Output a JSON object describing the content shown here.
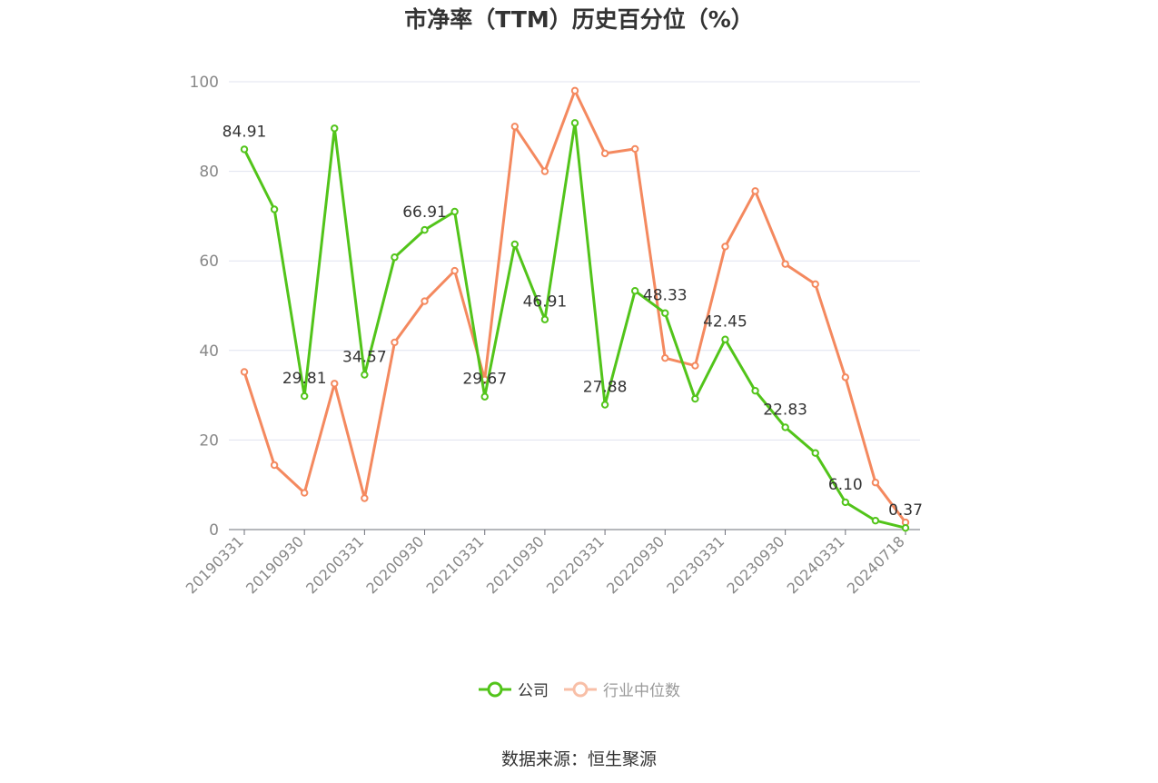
{
  "chart_data": {
    "type": "line",
    "title": "市净率（TTM）历史百分位（%）",
    "source": "数据来源：恒生聚源",
    "ylim": [
      0,
      100
    ],
    "yticks": [
      0,
      20,
      40,
      60,
      80,
      100
    ],
    "x_tick_labels": [
      "20190331",
      "20190930",
      "20200331",
      "20200930",
      "20210331",
      "20210930",
      "20220331",
      "20220930",
      "20230331",
      "20230930",
      "20240331",
      "20240718"
    ],
    "x": [
      "20190331",
      "20190630",
      "20190930",
      "20191231",
      "20200331",
      "20200630",
      "20200930",
      "20201231",
      "20210331",
      "20210630",
      "20210930",
      "20211231",
      "20220331",
      "20220630",
      "20220930",
      "20221231",
      "20230331",
      "20230630",
      "20230930",
      "20231231",
      "20240331",
      "20240630",
      "20240718"
    ],
    "grid": true,
    "legend_position": "bottom",
    "series": [
      {
        "name": "公司",
        "color": "#52c41a",
        "values": [
          84.91,
          71.5,
          29.81,
          89.6,
          34.57,
          60.8,
          66.91,
          71.0,
          29.67,
          63.7,
          46.91,
          90.8,
          27.88,
          53.3,
          48.33,
          29.2,
          42.45,
          31.0,
          22.83,
          17.1,
          6.1,
          2.0,
          0.37
        ],
        "data_labels": [
          "84.91",
          "",
          "29.81",
          "",
          "34.57",
          "",
          "66.91",
          "",
          "29.67",
          "",
          "46.91",
          "",
          "27.88",
          "",
          "48.33",
          "",
          "42.45",
          "",
          "22.83",
          "",
          "6.10",
          "",
          "0.37"
        ]
      },
      {
        "name": "行业中位数",
        "color": "#f4895f",
        "values": [
          35.2,
          14.4,
          8.2,
          32.6,
          7.0,
          41.8,
          51.0,
          57.8,
          33.5,
          90.0,
          80.0,
          98.0,
          84.0,
          85.0,
          38.3,
          36.6,
          63.2,
          75.6,
          59.3,
          54.8,
          34.0,
          10.5,
          1.6
        ]
      }
    ]
  }
}
